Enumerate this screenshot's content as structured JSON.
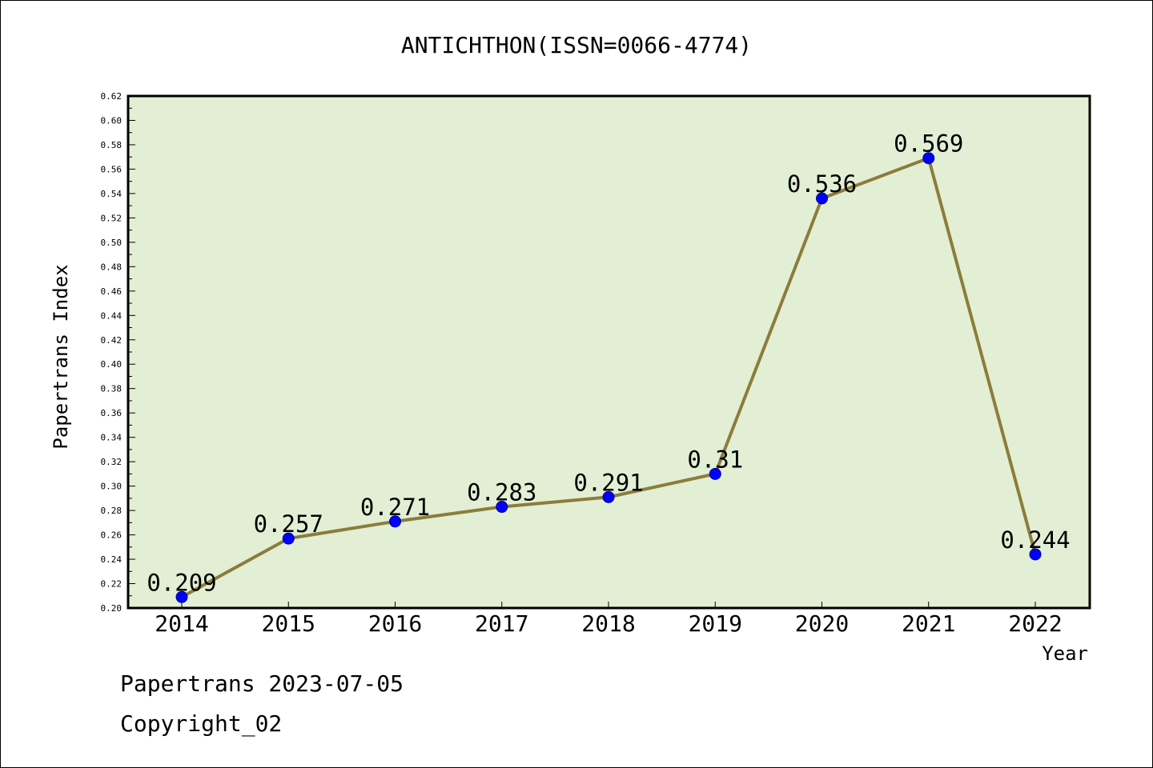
{
  "chart_data": {
    "type": "line",
    "title": "ANTICHTHON(ISSN=0066-4774)",
    "xlabel": "Year",
    "ylabel": "Papertrans Index",
    "categories": [
      "2014",
      "2015",
      "2016",
      "2017",
      "2018",
      "2019",
      "2020",
      "2021",
      "2022"
    ],
    "series": [
      {
        "values": [
          0.209,
          0.257,
          0.271,
          0.283,
          0.291,
          0.31,
          0.536,
          0.569,
          0.244
        ],
        "labels": [
          "0.209",
          "0.257",
          "0.271",
          "0.283",
          "0.291",
          "0.31",
          "0.536",
          "0.569",
          "0.244"
        ]
      }
    ],
    "ylim": [
      0.2,
      0.62
    ],
    "yticks": [
      "0.20",
      "0.22",
      "0.24",
      "0.26",
      "0.28",
      "0.30",
      "0.32",
      "0.34",
      "0.36",
      "0.38",
      "0.40",
      "0.42",
      "0.44",
      "0.46",
      "0.48",
      "0.50",
      "0.52",
      "0.54",
      "0.56",
      "0.58",
      "0.60",
      "0.62"
    ],
    "ytick_step": 0.02,
    "grid": false,
    "legend": "none"
  },
  "footer": {
    "line1": "Papertrans 2023-07-05",
    "line2": "Copyright_02"
  },
  "colors": {
    "plot_background": "#e2efd5",
    "line": "#8b7d3a",
    "marker_fill": "#0000ff",
    "marker_stroke": "#00008b",
    "axis": "#000000"
  }
}
